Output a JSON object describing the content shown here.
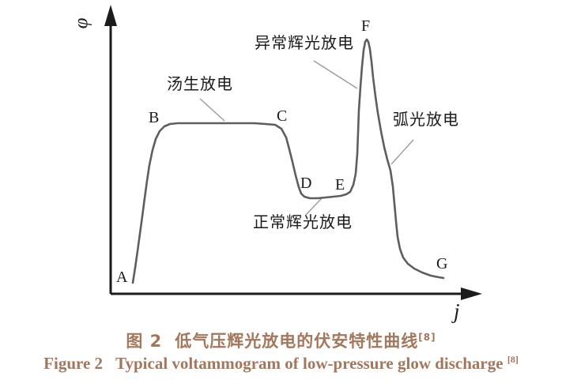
{
  "figure": {
    "y_axis_label": "φ",
    "x_axis_label": "j"
  },
  "caption": {
    "zh_prefix": "图 2",
    "zh_title": "低气压辉光放电的伏安特性曲线",
    "zh_ref": "[8]",
    "en_prefix": "Figure 2",
    "en_title": "Typical voltammogram of low-pressure glow discharge",
    "en_ref": "[8]",
    "color": "#a4765b"
  },
  "chart_data": {
    "type": "line",
    "title": "图 2 低气压辉光放电的伏安特性曲线 / Figure 2 Typical voltammogram of low-pressure glow discharge",
    "xlabel": "j",
    "ylabel": "φ",
    "axes_quantitative": false,
    "x_range_norm": [
      0,
      1
    ],
    "y_range_norm": [
      0,
      1
    ],
    "grid": false,
    "key_points": [
      {
        "label": "A",
        "j": 0.06,
        "phi": 0.04
      },
      {
        "label": "B",
        "j": 0.14,
        "phi": 0.6
      },
      {
        "label": "C",
        "j": 0.45,
        "phi": 0.6
      },
      {
        "label": "D",
        "j": 0.53,
        "phi": 0.34
      },
      {
        "label": "E",
        "j": 0.64,
        "phi": 0.35
      },
      {
        "label": "F",
        "j": 0.69,
        "phi": 0.9
      },
      {
        "label": "G",
        "j": 0.89,
        "phi": 0.06
      }
    ],
    "regions": [
      {
        "label": "汤生放电",
        "span": "B–C"
      },
      {
        "label": "正常辉光放电",
        "span": "D–E"
      },
      {
        "label": "异常辉光放电",
        "span": "E–F"
      },
      {
        "label": "弧光放电",
        "span": "F–G"
      }
    ],
    "render": {
      "axis_color": "#1b1b1b",
      "curve_color": "#5e5e5e",
      "leader_color": "#9b9b9b",
      "origin": [
        140,
        372
      ],
      "y_tip": [
        140,
        6
      ],
      "x_tip": [
        610,
        372
      ],
      "curve": [
        [
          168,
          358
        ],
        [
          171,
          339
        ],
        [
          174,
          318
        ],
        [
          177,
          296
        ],
        [
          180,
          274
        ],
        [
          183,
          251
        ],
        [
          186,
          229
        ],
        [
          189,
          209
        ],
        [
          193,
          190
        ],
        [
          197,
          176
        ],
        [
          202,
          166
        ],
        [
          208,
          160
        ],
        [
          215,
          157
        ],
        [
          225,
          156
        ],
        [
          245,
          156
        ],
        [
          265,
          156
        ],
        [
          285,
          156
        ],
        [
          305,
          156
        ],
        [
          322,
          156
        ],
        [
          336,
          157
        ],
        [
          348,
          158
        ],
        [
          356,
          163
        ],
        [
          362,
          174
        ],
        [
          366,
          189
        ],
        [
          370,
          205
        ],
        [
          374,
          222
        ],
        [
          378,
          237
        ],
        [
          381,
          245
        ],
        [
          385,
          249
        ],
        [
          392,
          251
        ],
        [
          402,
          251
        ],
        [
          412,
          250
        ],
        [
          422,
          249
        ],
        [
          431,
          248
        ],
        [
          438,
          246
        ],
        [
          443,
          243
        ],
        [
          447,
          234
        ],
        [
          450,
          220
        ],
        [
          452,
          195
        ],
        [
          453,
          168
        ],
        [
          454,
          140
        ],
        [
          456,
          110
        ],
        [
          458,
          84
        ],
        [
          460,
          64
        ],
        [
          462,
          53
        ],
        [
          464,
          50
        ],
        [
          466,
          53
        ],
        [
          468,
          62
        ],
        [
          470,
          78
        ],
        [
          472,
          98
        ],
        [
          475,
          122
        ],
        [
          478,
          143
        ],
        [
          482,
          166
        ],
        [
          486,
          186
        ],
        [
          490,
          202
        ],
        [
          494,
          216
        ],
        [
          497,
          236
        ],
        [
          499,
          258
        ],
        [
          501,
          280
        ],
        [
          503,
          300
        ],
        [
          506,
          315
        ],
        [
          510,
          326
        ],
        [
          516,
          334
        ],
        [
          524,
          340
        ],
        [
          534,
          345
        ],
        [
          545,
          349
        ],
        [
          555,
          351
        ],
        [
          561,
          352
        ]
      ],
      "leaders": [
        [
          253,
          125,
          284,
          153
        ],
        [
          387,
          272,
          407,
          251
        ],
        [
          397,
          77,
          452,
          112
        ],
        [
          495,
          208,
          523,
          177
        ]
      ]
    }
  }
}
